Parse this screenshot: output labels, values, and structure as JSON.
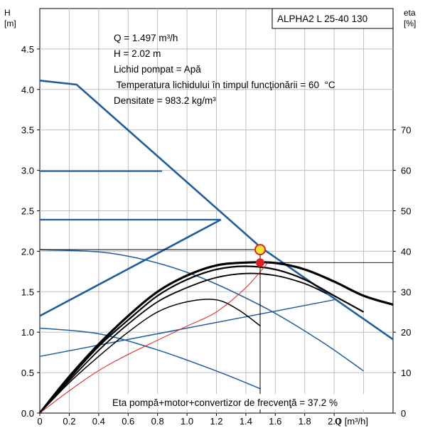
{
  "chart_data": {
    "type": "line",
    "model": "ALPHA2 L 25-40 130",
    "y_left_label": [
      "H",
      "[m]"
    ],
    "y_right_label": [
      "eta",
      "[%]"
    ],
    "x_label": "Q [m³/h]",
    "x_ticks": [
      "0",
      "0.2",
      "0.4",
      "0.6",
      "0.8",
      "1.0",
      "1.2",
      "1.4",
      "1.6",
      "1.8",
      "2.0"
    ],
    "y_left_ticks": [
      "0.0",
      "0.5",
      "1.0",
      "1.5",
      "2.0",
      "2.5",
      "3.0",
      "3.5",
      "4.0",
      "4.5"
    ],
    "y_right_ticks": [
      "0",
      "10",
      "20",
      "30",
      "40",
      "50",
      "60",
      "70"
    ],
    "xlim": [
      0,
      2.4
    ],
    "ylim_left": [
      0,
      5
    ],
    "ylim_right": [
      0,
      100
    ],
    "annotations": [
      "Q = 1.497  m³/h",
      "H = 2.02 m",
      "Lichid pompat = Apă",
      " Temperatura lichidului în timpul funcţionării = 60  °C",
      "Densitate = 983.2  kg/m³"
    ],
    "efficiency_note": "Eta pompă+motor+convertizor de frecvenţă = 37.2 %",
    "duty_point": {
      "q": 1.497,
      "h": 2.02
    },
    "efficiency_point": {
      "q": 1.497,
      "eta": 37.2
    },
    "max_curve": [
      [
        0,
        4.11
      ],
      [
        0.25,
        4.06
      ],
      [
        1.5,
        2.05
      ],
      [
        2.4,
        0.91
      ]
    ],
    "constant_pressure_curves": [
      [
        [
          0,
          2.99
        ],
        [
          0.83,
          2.99
        ]
      ],
      [
        [
          0,
          2.39
        ],
        [
          1.23,
          2.39
        ]
      ]
    ],
    "proportional_pressure_curves": [
      [
        [
          0,
          1.2
        ],
        [
          1.23,
          2.39
        ]
      ],
      [
        [
          0,
          0.7
        ],
        [
          2.0,
          1.4
        ]
      ]
    ],
    "fixed_speed_curves": [
      [
        [
          0,
          2.02
        ],
        [
          0.5,
          1.97
        ],
        [
          1.0,
          1.74
        ],
        [
          1.5,
          1.33
        ],
        [
          1.9,
          0.9
        ],
        [
          2.2,
          0.52
        ]
      ],
      [
        [
          0,
          1.05
        ],
        [
          0.4,
          0.98
        ],
        [
          0.8,
          0.78
        ],
        [
          1.2,
          0.52
        ],
        [
          1.5,
          0.3
        ]
      ]
    ],
    "efficiency_curves": [
      [
        [
          0,
          0
        ],
        [
          0.2,
          9
        ],
        [
          0.4,
          17
        ],
        [
          0.6,
          24
        ],
        [
          0.8,
          30
        ],
        [
          1.0,
          34
        ],
        [
          1.2,
          36.5
        ],
        [
          1.4,
          37.2
        ],
        [
          1.6,
          37.1
        ],
        [
          1.8,
          35.5
        ],
        [
          2.0,
          32.5
        ],
        [
          2.2,
          29
        ],
        [
          2.4,
          26.8
        ]
      ],
      [
        [
          0,
          0
        ],
        [
          0.2,
          8.5
        ],
        [
          0.4,
          16.5
        ],
        [
          0.6,
          23
        ],
        [
          0.8,
          29
        ],
        [
          1.0,
          33
        ],
        [
          1.2,
          35.5
        ],
        [
          1.4,
          36.3
        ],
        [
          1.6,
          35.5
        ],
        [
          1.8,
          33
        ],
        [
          2.0,
          29
        ],
        [
          2.2,
          25
        ]
      ],
      [
        [
          0,
          0
        ],
        [
          0.2,
          8
        ],
        [
          0.4,
          15.5
        ],
        [
          0.6,
          22
        ],
        [
          0.8,
          27.5
        ],
        [
          1.0,
          31
        ],
        [
          1.2,
          33.5
        ],
        [
          1.4,
          34.5
        ],
        [
          1.6,
          34
        ],
        [
          1.8,
          32
        ],
        [
          1.95,
          29.5
        ]
      ],
      [
        [
          0,
          0
        ],
        [
          0.2,
          7.5
        ],
        [
          0.4,
          14
        ],
        [
          0.6,
          20
        ],
        [
          0.8,
          25
        ],
        [
          1.0,
          27.5
        ],
        [
          1.2,
          28
        ],
        [
          1.35,
          25.5
        ],
        [
          1.5,
          21.5
        ]
      ],
      [
        [
          0,
          0
        ],
        [
          0.2,
          5.5
        ],
        [
          0.4,
          10.5
        ],
        [
          0.6,
          14.5
        ],
        [
          0.8,
          18
        ],
        [
          1.0,
          21.5
        ],
        [
          1.2,
          25
        ],
        [
          1.4,
          31
        ],
        [
          1.55,
          37.2
        ]
      ]
    ],
    "grid": true,
    "legend": "top-right"
  },
  "colors": {
    "curve_blue": "#1f5e99",
    "efficiency": "#000000",
    "system_curve": "#e02020",
    "duty_marker_fill": "#f2e53a",
    "duty_marker_stroke": "#e02020",
    "grid": "#bfbfbf"
  }
}
